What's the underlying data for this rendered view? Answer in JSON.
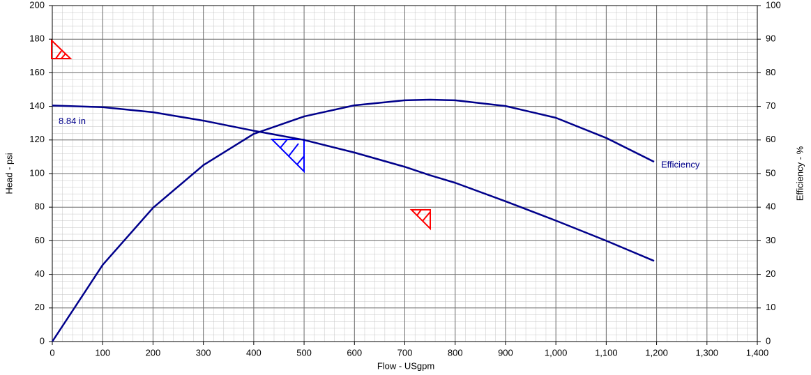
{
  "chart_data": {
    "type": "line",
    "x_label": "Flow - USgpm",
    "y_label": "Head - psi",
    "y2_label": "Efficiency - %",
    "x": [
      0,
      100,
      200,
      300,
      400,
      500,
      600,
      700,
      750,
      800,
      900,
      1000,
      1100,
      1195
    ],
    "series": [
      {
        "name": "8.84 in",
        "color": "#00008b",
        "values": [
          140.5,
          139.5,
          136.5,
          131.5,
          125.5,
          120,
          112.5,
          104,
          99,
          94.5,
          83.5,
          72,
          60,
          48
        ]
      },
      {
        "name": "Efficiency",
        "color": "#00008b",
        "axis": "y2",
        "values": [
          0,
          22.8,
          39.8,
          52.5,
          61.8,
          67,
          70.3,
          71.8,
          72,
          71.8,
          70.1,
          66.6,
          60.6,
          53.5
        ]
      }
    ],
    "xlim": [
      0,
      1400
    ],
    "xticks": [
      0,
      100,
      200,
      300,
      400,
      500,
      600,
      700,
      800,
      900,
      {
        "value": 1000,
        "label": "1,000"
      },
      {
        "value": 1100,
        "label": "1,100"
      },
      {
        "value": 1200,
        "label": "1,200"
      },
      {
        "value": 1300,
        "label": "1,300"
      },
      {
        "value": 1400,
        "label": "1,400"
      }
    ],
    "ylim": [
      0,
      200
    ],
    "yticks": [
      0,
      20,
      40,
      60,
      80,
      100,
      120,
      140,
      160,
      180,
      200
    ],
    "y2lim": [
      0,
      100
    ],
    "y2ticks": [
      0,
      10,
      20,
      30,
      40,
      50,
      60,
      70,
      80,
      90,
      100
    ],
    "grid": true
  }
}
